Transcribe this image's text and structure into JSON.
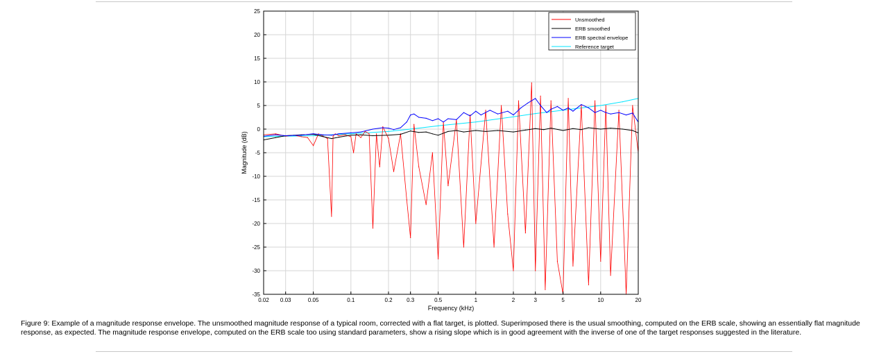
{
  "chart_data": {
    "type": "line",
    "title": "",
    "xlabel": "Frequency (kHz)",
    "ylabel": "Magnitude (dB)",
    "xscale": "log",
    "xlim": [
      0.02,
      20
    ],
    "ylim": [
      -35,
      25
    ],
    "grid": true,
    "legend_position": "top-right",
    "xticks": [
      0.02,
      0.03,
      0.05,
      0.1,
      0.2,
      0.3,
      0.5,
      1,
      2,
      3,
      5,
      10,
      20
    ],
    "xtick_labels": [
      "0.02",
      "0.03",
      "0.05",
      "0.1",
      "0.2",
      "0.3",
      "0.5",
      "1",
      "2",
      "3",
      "5",
      "10",
      "20"
    ],
    "yticks": [
      25,
      20,
      15,
      10,
      5,
      0,
      -5,
      -10,
      -15,
      -20,
      -25,
      -30,
      -35
    ],
    "ytick_labels": [
      "25",
      "20",
      "15",
      "10",
      "5",
      "0",
      "-5",
      "-10",
      "-15",
      "-20",
      "-25",
      "-30",
      "-35"
    ],
    "series": [
      {
        "name": "Unsmoothed",
        "color": "#ff0000",
        "note": "dense noisy curve; listed values are representative samples",
        "x": [
          0.02,
          0.025,
          0.03,
          0.035,
          0.04,
          0.045,
          0.05,
          0.055,
          0.06,
          0.065,
          0.07,
          0.072,
          0.075,
          0.08,
          0.09,
          0.1,
          0.105,
          0.11,
          0.12,
          0.13,
          0.14,
          0.15,
          0.16,
          0.17,
          0.18,
          0.2,
          0.22,
          0.25,
          0.28,
          0.3,
          0.32,
          0.35,
          0.4,
          0.45,
          0.5,
          0.55,
          0.6,
          0.7,
          0.8,
          0.9,
          1.0,
          1.2,
          1.4,
          1.6,
          1.8,
          2.0,
          2.2,
          2.5,
          2.8,
          3.0,
          3.3,
          3.6,
          4.0,
          4.5,
          5.0,
          5.5,
          6.0,
          7.0,
          8.0,
          9.0,
          10.0,
          11.0,
          12.0,
          14.0,
          16.0,
          18.0,
          20.0
        ],
        "y": [
          -1.2,
          -1.0,
          -1.5,
          -1.3,
          -1.6,
          -1.8,
          -3.5,
          -1.0,
          -1.5,
          -2.0,
          -18.5,
          -1.5,
          -1.0,
          -1.4,
          -1.2,
          -1.6,
          -5.0,
          -1.0,
          -1.8,
          -0.5,
          -1.0,
          -21.0,
          -1.0,
          -8.0,
          0.5,
          -2.0,
          -9.0,
          -1.0,
          -15.0,
          -23.0,
          1.0,
          -8.0,
          -16.0,
          -5.0,
          -27.5,
          1.5,
          -12.0,
          2.0,
          -25.0,
          3.0,
          -20.0,
          4.0,
          -25.0,
          5.0,
          -18.0,
          -30.0,
          6.0,
          -22.0,
          9.8,
          -30.0,
          7.0,
          -34.0,
          6.0,
          -28.0,
          -35.0,
          6.5,
          -29.0,
          5.0,
          -33.0,
          6.0,
          -28.0,
          5.0,
          -31.0,
          4.0,
          -35.0,
          5.0,
          -5.0
        ]
      },
      {
        "name": "ERB smoothed",
        "color": "#000000",
        "x": [
          0.02,
          0.025,
          0.03,
          0.04,
          0.05,
          0.06,
          0.07,
          0.08,
          0.1,
          0.12,
          0.15,
          0.2,
          0.25,
          0.3,
          0.35,
          0.4,
          0.45,
          0.5,
          0.6,
          0.7,
          0.8,
          1.0,
          1.2,
          1.5,
          2.0,
          2.5,
          3.0,
          3.5,
          4.0,
          5.0,
          6.0,
          7.0,
          8.0,
          10.0,
          12.0,
          15.0,
          18.0,
          20.0
        ],
        "y": [
          -2.3,
          -1.8,
          -1.4,
          -1.2,
          -1.1,
          -1.6,
          -2.0,
          -1.7,
          -1.3,
          -1.2,
          -1.4,
          -1.3,
          -1.1,
          -0.4,
          -0.7,
          -0.6,
          -1.0,
          -1.3,
          -0.5,
          -0.3,
          -0.6,
          -0.3,
          -0.5,
          -0.3,
          -0.6,
          -0.2,
          0.1,
          -0.1,
          0.2,
          -0.3,
          0.1,
          -0.1,
          0.3,
          0.0,
          0.2,
          0.0,
          -0.3,
          -0.8
        ]
      },
      {
        "name": "ERB spectral envelope",
        "color": "#0000ff",
        "x": [
          0.02,
          0.025,
          0.03,
          0.04,
          0.05,
          0.06,
          0.07,
          0.08,
          0.1,
          0.12,
          0.15,
          0.18,
          0.2,
          0.22,
          0.25,
          0.28,
          0.3,
          0.32,
          0.35,
          0.4,
          0.45,
          0.5,
          0.55,
          0.6,
          0.7,
          0.8,
          0.9,
          1.0,
          1.1,
          1.3,
          1.5,
          1.8,
          2.0,
          2.3,
          2.6,
          3.0,
          3.3,
          3.7,
          4.0,
          4.5,
          5.0,
          5.5,
          6.0,
          7.0,
          8.0,
          9.0,
          10.0,
          11.0,
          12.0,
          14.0,
          16.0,
          18.0,
          20.0
        ],
        "y": [
          -1.5,
          -1.2,
          -1.4,
          -1.3,
          -1.0,
          -1.2,
          -1.3,
          -1.0,
          -0.8,
          -0.6,
          0.0,
          0.3,
          0.2,
          -0.1,
          0.3,
          1.5,
          3.0,
          3.2,
          2.5,
          2.3,
          1.8,
          2.2,
          1.5,
          2.2,
          2.0,
          3.5,
          2.8,
          3.8,
          3.0,
          4.0,
          3.2,
          3.8,
          3.0,
          4.5,
          5.5,
          6.5,
          5.0,
          3.5,
          4.2,
          4.8,
          4.0,
          4.5,
          3.8,
          5.2,
          4.5,
          3.5,
          4.0,
          3.5,
          3.2,
          3.5,
          3.0,
          3.4,
          1.5
        ]
      },
      {
        "name": "Reference target",
        "color": "#00e5ff",
        "x": [
          0.02,
          0.05,
          0.1,
          0.2,
          0.3,
          0.5,
          1.0,
          2.0,
          3.0,
          5.0,
          10.0,
          15.0,
          20.0
        ],
        "y": [
          -1.6,
          -1.4,
          -1.0,
          -0.5,
          0.0,
          0.7,
          1.5,
          2.6,
          3.3,
          4.0,
          5.0,
          5.8,
          6.5
        ]
      }
    ]
  },
  "caption": "Figure 9: Example of a magnitude response envelope. The unsmoothed magnitude response of a typical room, corrected with a flat target, is plotted. Superimposed there is the usual smoothing, computed on the ERB scale, showing an essentially flat magnitude response, as expected. The magnitude response envelope, computed on the ERB scale too using standard parameters, show a rising slope which is in good agreement with the inverse of one of the target responses suggested in the literature."
}
